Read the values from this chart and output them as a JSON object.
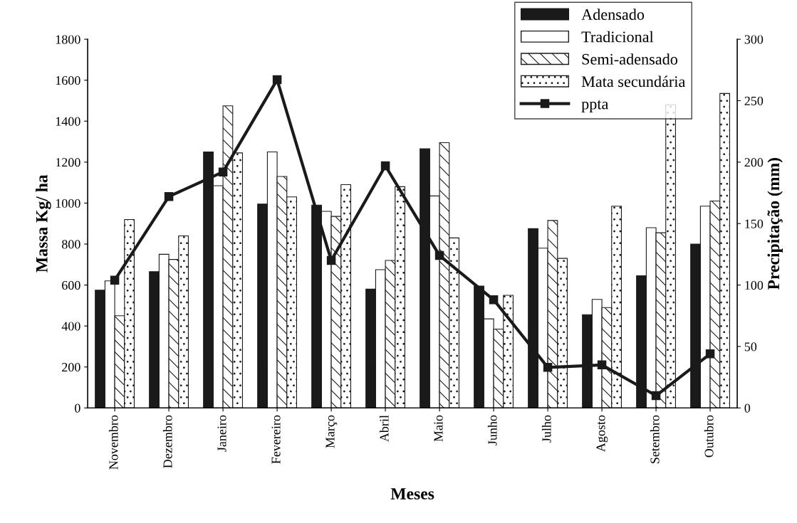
{
  "chart_data": {
    "type": "bar",
    "xlabel": "Meses",
    "ylabel": "Massa Kg/ ha",
    "y2label": "Precipitação (mm)",
    "categories": [
      "Novembro",
      "Dezembro",
      "Janeiro",
      "Fevereiro",
      "Março",
      "Abril",
      "Maio",
      "Junho",
      "Julho",
      "Agosto",
      "Setembro",
      "Outubro"
    ],
    "series": [
      {
        "name": "Adensado",
        "color": "#1a1a1a",
        "values": [
          575,
          665,
          1250,
          995,
          990,
          580,
          1265,
          595,
          875,
          455,
          645,
          800
        ]
      },
      {
        "name": "Tradicional",
        "color": "#ffffff",
        "values": [
          620,
          750,
          1085,
          1250,
          960,
          675,
          1035,
          435,
          780,
          530,
          880,
          985
        ]
      },
      {
        "name": "Semi-adensado",
        "color": "#1a1a1a",
        "values": [
          450,
          725,
          1475,
          1130,
          935,
          720,
          1295,
          385,
          915,
          490,
          855,
          1010
        ]
      },
      {
        "name": "Mata secundária",
        "color": "#1a1a1a",
        "values": [
          920,
          840,
          1245,
          1030,
          1090,
          1080,
          830,
          550,
          730,
          985,
          1480,
          1535
        ]
      },
      {
        "name": "ppta",
        "type": "line",
        "axis": "y2",
        "color": "#1a1a1a",
        "marker": "square",
        "values": [
          104,
          172,
          192,
          267,
          120,
          197,
          124,
          88,
          33,
          35,
          10,
          44
        ]
      }
    ],
    "ylim": [
      0,
      1800
    ],
    "yticks": [
      0,
      200,
      400,
      600,
      800,
      1000,
      1200,
      1400,
      1600,
      1800
    ],
    "y2lim": [
      0,
      300
    ],
    "y2ticks": [
      0,
      50,
      100,
      150,
      200,
      250,
      300
    ],
    "legend": "top right",
    "grid": false
  }
}
